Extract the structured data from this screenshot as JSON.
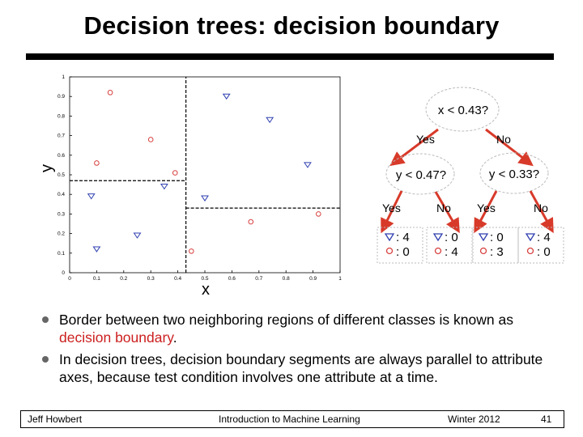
{
  "slide": {
    "title": "Decision trees: decision boundary",
    "bullets": [
      {
        "before": "Border between two neighboring regions of different classes is known as ",
        "highlight": "decision boundary",
        "after": "."
      },
      {
        "before": "In decision trees, decision boundary segments are always parallel to attribute axes, because test condition involves one attribute at a time.",
        "highlight": "",
        "after": ""
      }
    ],
    "footer": {
      "author": "Jeff Howbert",
      "course": "Introduction to Machine Learning",
      "term": "Winter 2012",
      "page": "41"
    },
    "colors": {
      "red": "#cc1f1f",
      "marker_red": "#d84040",
      "marker_blue": "#2f3fb0",
      "arrow": "#d83a2a"
    }
  },
  "chart_data": {
    "type": "scatter",
    "xlabel": "x",
    "ylabel": "y",
    "xlim": [
      0,
      1
    ],
    "ylim": [
      0,
      1
    ],
    "xticks": [
      "0",
      "0.1",
      "0.2",
      "0.3",
      "0.4",
      "0.5",
      "0.6",
      "0.7",
      "0.8",
      "0.9",
      "1"
    ],
    "yticks": [
      "0",
      "0.1",
      "0.2",
      "0.3",
      "0.4",
      "0.5",
      "0.6",
      "0.7",
      "0.8",
      "0.9",
      "1"
    ],
    "series": [
      {
        "marker": "circle",
        "color": "#d84040",
        "points": [
          [
            0.15,
            0.92
          ],
          [
            0.3,
            0.68
          ],
          [
            0.1,
            0.56
          ],
          [
            0.39,
            0.51
          ],
          [
            0.45,
            0.11
          ],
          [
            0.67,
            0.26
          ],
          [
            0.92,
            0.3
          ]
        ]
      },
      {
        "marker": "triangle",
        "color": "#2f3fb0",
        "points": [
          [
            0.58,
            0.9
          ],
          [
            0.74,
            0.78
          ],
          [
            0.88,
            0.55
          ],
          [
            0.35,
            0.44
          ],
          [
            0.08,
            0.39
          ],
          [
            0.5,
            0.38
          ],
          [
            0.25,
            0.19
          ],
          [
            0.1,
            0.12
          ]
        ]
      }
    ],
    "boundaries": [
      {
        "orient": "h",
        "y": 0.47,
        "x0": 0,
        "x1": 0.43
      },
      {
        "orient": "h",
        "y": 0.33,
        "x0": 0.43,
        "x1": 1
      },
      {
        "orient": "v",
        "x": 0.43,
        "y0": 0,
        "y1": 1
      }
    ]
  },
  "tree": {
    "root": "x < 0.43?",
    "root_yes": "Yes",
    "root_no": "No",
    "left": "y < 0.47?",
    "right": "y < 0.33?",
    "branch_labels": [
      "Yes",
      "No",
      "Yes",
      "No"
    ],
    "leaves": [
      {
        "tri": ": 4",
        "circ": ": 0"
      },
      {
        "tri": ": 0",
        "circ": ": 4"
      },
      {
        "tri": ": 0",
        "circ": ": 3"
      },
      {
        "tri": ": 4",
        "circ": ": 0"
      }
    ]
  }
}
